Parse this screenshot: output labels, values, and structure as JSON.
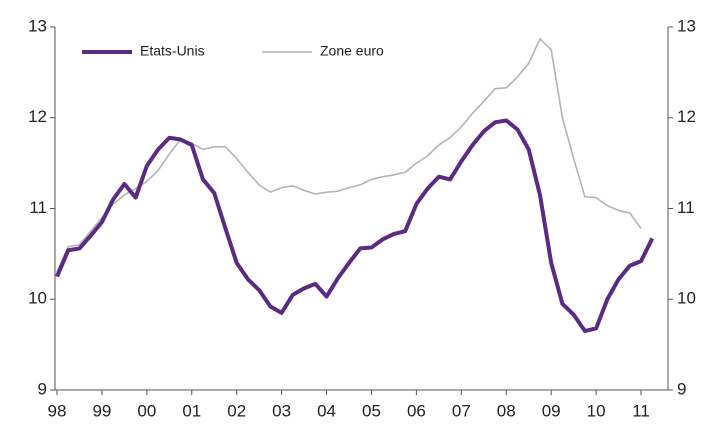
{
  "chart_data": {
    "type": "line",
    "x": [
      1998,
      1998.25,
      1998.5,
      1998.75,
      1999,
      1999.25,
      1999.5,
      1999.75,
      2000,
      2000.25,
      2000.5,
      2000.75,
      2001,
      2001.25,
      2001.5,
      2001.75,
      2002,
      2002.25,
      2002.5,
      2002.75,
      2003,
      2003.25,
      2003.5,
      2003.75,
      2004,
      2004.25,
      2004.5,
      2004.75,
      2005,
      2005.25,
      2005.5,
      2005.75,
      2006,
      2006.25,
      2006.5,
      2006.75,
      2007,
      2007.25,
      2007.5,
      2007.75,
      2008,
      2008.25,
      2008.5,
      2008.75,
      2009,
      2009.25,
      2009.5,
      2009.75,
      2010,
      2010.25,
      2010.5,
      2010.75,
      2011,
      2011.25
    ],
    "series": [
      {
        "name": "Etats-Unis",
        "color": "#5b2a82",
        "width": 4,
        "values": [
          10.25,
          10.54,
          10.56,
          10.7,
          10.85,
          11.1,
          11.27,
          11.12,
          11.47,
          11.65,
          11.78,
          11.76,
          11.7,
          11.32,
          11.17,
          10.78,
          10.4,
          10.22,
          10.1,
          9.92,
          9.85,
          10.05,
          10.12,
          10.17,
          10.03,
          10.23,
          10.4,
          10.56,
          10.57,
          10.66,
          10.72,
          10.75,
          11.05,
          11.22,
          11.35,
          11.32,
          11.52,
          11.7,
          11.85,
          11.95,
          11.97,
          11.87,
          11.65,
          11.15,
          10.4,
          9.95,
          9.83,
          9.65,
          9.68,
          10.0,
          10.22,
          10.37,
          10.42,
          10.67
        ]
      },
      {
        "name": "Zone euro",
        "color": "#b3b3b3",
        "width": 1.6,
        "values": [
          10.3,
          10.58,
          10.6,
          10.75,
          10.9,
          11.05,
          11.15,
          11.22,
          11.3,
          11.42,
          11.6,
          11.76,
          11.72,
          11.65,
          11.68,
          11.68,
          11.55,
          11.4,
          11.26,
          11.18,
          11.23,
          11.25,
          11.2,
          11.16,
          11.18,
          11.19,
          11.23,
          11.26,
          11.32,
          11.35,
          11.37,
          11.4,
          11.5,
          11.58,
          11.7,
          11.78,
          11.9,
          12.05,
          12.18,
          12.32,
          12.33,
          12.45,
          12.6,
          12.87,
          12.75,
          12.0,
          11.55,
          11.13,
          11.12,
          11.03,
          10.98,
          10.95,
          10.78,
          null
        ]
      }
    ],
    "xlim": [
      1998,
      2011.6
    ],
    "xticks": [
      {
        "value": 1998,
        "label": "98"
      },
      {
        "value": 1999,
        "label": "99"
      },
      {
        "value": 2000,
        "label": "00"
      },
      {
        "value": 2001,
        "label": "01"
      },
      {
        "value": 2002,
        "label": "02"
      },
      {
        "value": 2003,
        "label": "03"
      },
      {
        "value": 2004,
        "label": "04"
      },
      {
        "value": 2005,
        "label": "05"
      },
      {
        "value": 2006,
        "label": "06"
      },
      {
        "value": 2007,
        "label": "07"
      },
      {
        "value": 2008,
        "label": "08"
      },
      {
        "value": 2009,
        "label": "09"
      },
      {
        "value": 2010,
        "label": "10"
      },
      {
        "value": 2011,
        "label": "11"
      }
    ],
    "ylim": [
      9,
      13
    ],
    "yticks": [
      9,
      10,
      11,
      12,
      13
    ],
    "y2lim": [
      9,
      13
    ],
    "y2ticks": [
      9,
      10,
      11,
      12,
      13
    ],
    "grid": false,
    "legend": "top-left"
  }
}
